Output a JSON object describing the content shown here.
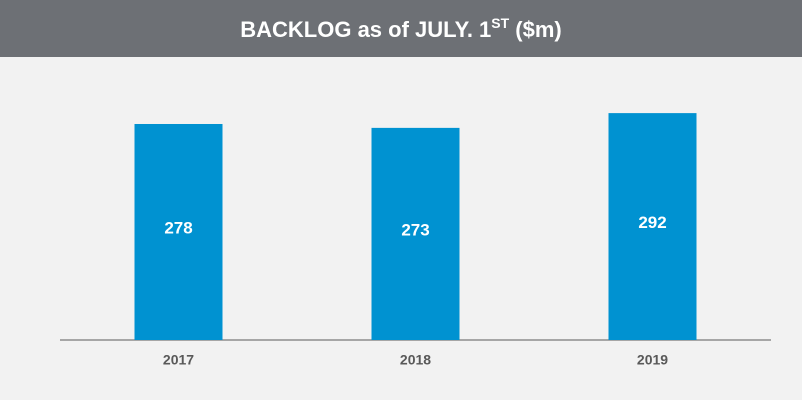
{
  "chart_data": {
    "type": "bar",
    "title": [
      "BACKLOG as of JULY. 1",
      "ST",
      " ($m)"
    ],
    "categories": [
      "2017",
      "2018",
      "2019"
    ],
    "values": [
      278,
      273,
      292
    ],
    "color": "#0092d1"
  }
}
